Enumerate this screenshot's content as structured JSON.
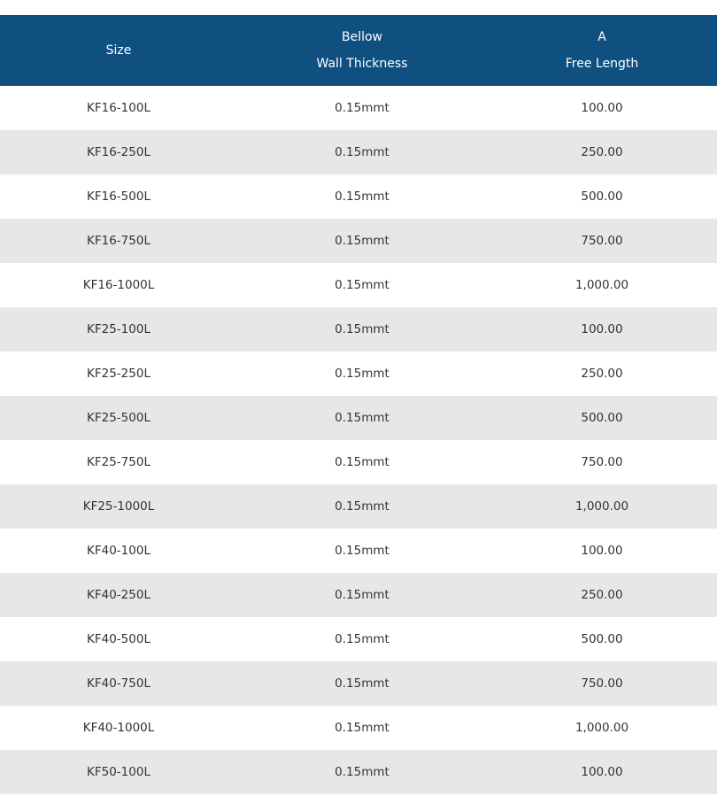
{
  "table": {
    "header": [
      "Size",
      [
        "Bellow",
        "Wall Thickness"
      ],
      [
        "A",
        "Free Length"
      ]
    ],
    "rows": [
      [
        "KF16-100L",
        "0.15mmt",
        "100.00"
      ],
      [
        "KF16-250L",
        "0.15mmt",
        "250.00"
      ],
      [
        "KF16-500L",
        "0.15mmt",
        "500.00"
      ],
      [
        "KF16-750L",
        "0.15mmt",
        "750.00"
      ],
      [
        "KF16-1000L",
        "0.15mmt",
        "1,000.00"
      ],
      [
        "KF25-100L",
        "0.15mmt",
        "100.00"
      ],
      [
        "KF25-250L",
        "0.15mmt",
        "250.00"
      ],
      [
        "KF25-500L",
        "0.15mmt",
        "500.00"
      ],
      [
        "KF25-750L",
        "0.15mmt",
        "750.00"
      ],
      [
        "KF25-1000L",
        "0.15mmt",
        "1,000.00"
      ],
      [
        "KF40-100L",
        "0.15mmt",
        "100.00"
      ],
      [
        "KF40-250L",
        "0.15mmt",
        "250.00"
      ],
      [
        "KF40-500L",
        "0.15mmt",
        "500.00"
      ],
      [
        "KF40-750L",
        "0.15mmt",
        "750.00"
      ],
      [
        "KF40-1000L",
        "0.15mmt",
        "1,000.00"
      ],
      [
        "KF50-100L",
        "0.15mmt",
        "100.00"
      ]
    ]
  }
}
